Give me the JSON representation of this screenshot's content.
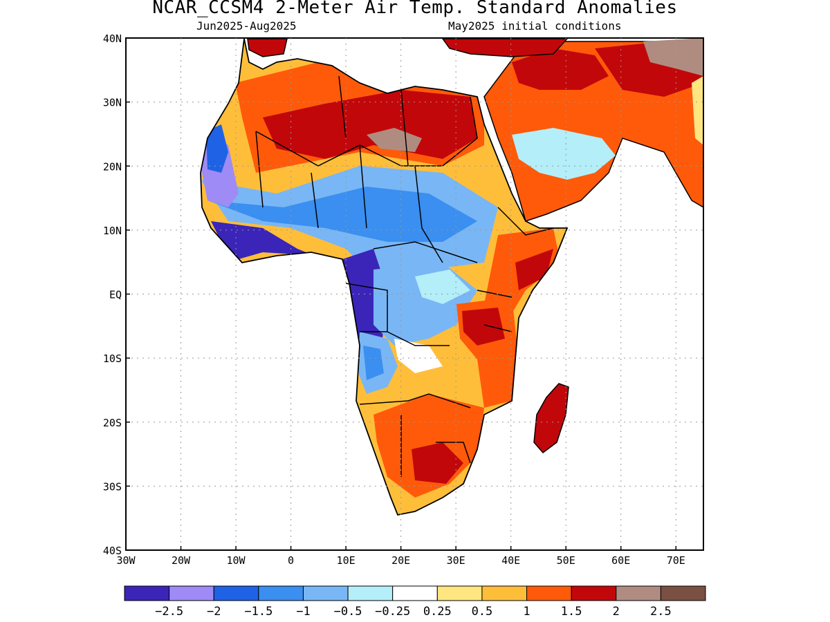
{
  "title": "NCAR_CCSM4 2-Meter Air Temp. Standard Anomalies",
  "period": "Jun2025-Aug2025",
  "init": "May2025 initial conditions",
  "map": {
    "lon_range": [
      -30,
      75
    ],
    "lat_range": [
      -40,
      40
    ],
    "lon_ticks": [
      {
        "v": -30,
        "label": "30W"
      },
      {
        "v": -20,
        "label": "20W"
      },
      {
        "v": -10,
        "label": "10W"
      },
      {
        "v": 0,
        "label": "0"
      },
      {
        "v": 10,
        "label": "10E"
      },
      {
        "v": 20,
        "label": "20E"
      },
      {
        "v": 30,
        "label": "30E"
      },
      {
        "v": 40,
        "label": "40E"
      },
      {
        "v": 50,
        "label": "50E"
      },
      {
        "v": 60,
        "label": "60E"
      },
      {
        "v": 70,
        "label": "70E"
      }
    ],
    "lat_ticks": [
      {
        "v": 40,
        "label": "40N"
      },
      {
        "v": 30,
        "label": "30N"
      },
      {
        "v": 20,
        "label": "20N"
      },
      {
        "v": 10,
        "label": "10N"
      },
      {
        "v": 0,
        "label": "EQ"
      },
      {
        "v": -10,
        "label": "10S"
      },
      {
        "v": -20,
        "label": "20S"
      },
      {
        "v": -30,
        "label": "30S"
      },
      {
        "v": -40,
        "label": "40S"
      }
    ],
    "grid": true
  },
  "colorbar": {
    "colors": [
      "#3a25b8",
      "#9f8bf5",
      "#1f62e6",
      "#3a8ff0",
      "#79b6f5",
      "#b3eef9",
      "#ffffff",
      "#ffe680",
      "#ffbe3a",
      "#ff5a0a",
      "#c2070a",
      "#b08c80",
      "#7a5042"
    ],
    "labels": [
      "-2.5",
      "-2",
      "-1.5",
      "-1",
      "-0.5",
      "-0.25",
      "0.25",
      "0.5",
      "1",
      "1.5",
      "2",
      "2.5"
    ]
  },
  "anomaly_regions": [
    {
      "lon": [
        -15,
        10
      ],
      "lat": [
        5,
        12
      ],
      "value": -2.3
    },
    {
      "lon": [
        -17,
        -12
      ],
      "lat": [
        12,
        25
      ],
      "value": -1.8
    },
    {
      "lon": [
        5,
        18
      ],
      "lat": [
        -13,
        8
      ],
      "value": -2.2
    },
    {
      "lon": [
        5,
        35
      ],
      "lat": [
        8,
        17
      ],
      "value": -1.3
    },
    {
      "lon": [
        15,
        32
      ],
      "lat": [
        -8,
        8
      ],
      "value": -0.7
    },
    {
      "lon": [
        -8,
        35
      ],
      "lat": [
        17,
        31
      ],
      "value": 1.6
    },
    {
      "lon": [
        15,
        28
      ],
      "lat": [
        20,
        28
      ],
      "value": 2.2
    },
    {
      "lon": [
        38,
        48
      ],
      "lat": [
        -5,
        12
      ],
      "value": 1.4
    },
    {
      "lon": [
        15,
        40
      ],
      "lat": [
        -33,
        -12
      ],
      "value": 1.3
    },
    {
      "lon": [
        44,
        50
      ],
      "lat": [
        -25,
        -13
      ],
      "value": 1.8
    },
    {
      "lon": [
        35,
        65
      ],
      "lat": [
        30,
        40
      ],
      "value": 1.7
    },
    {
      "lon": [
        40,
        60
      ],
      "lat": [
        18,
        30
      ],
      "value": -0.4
    }
  ]
}
